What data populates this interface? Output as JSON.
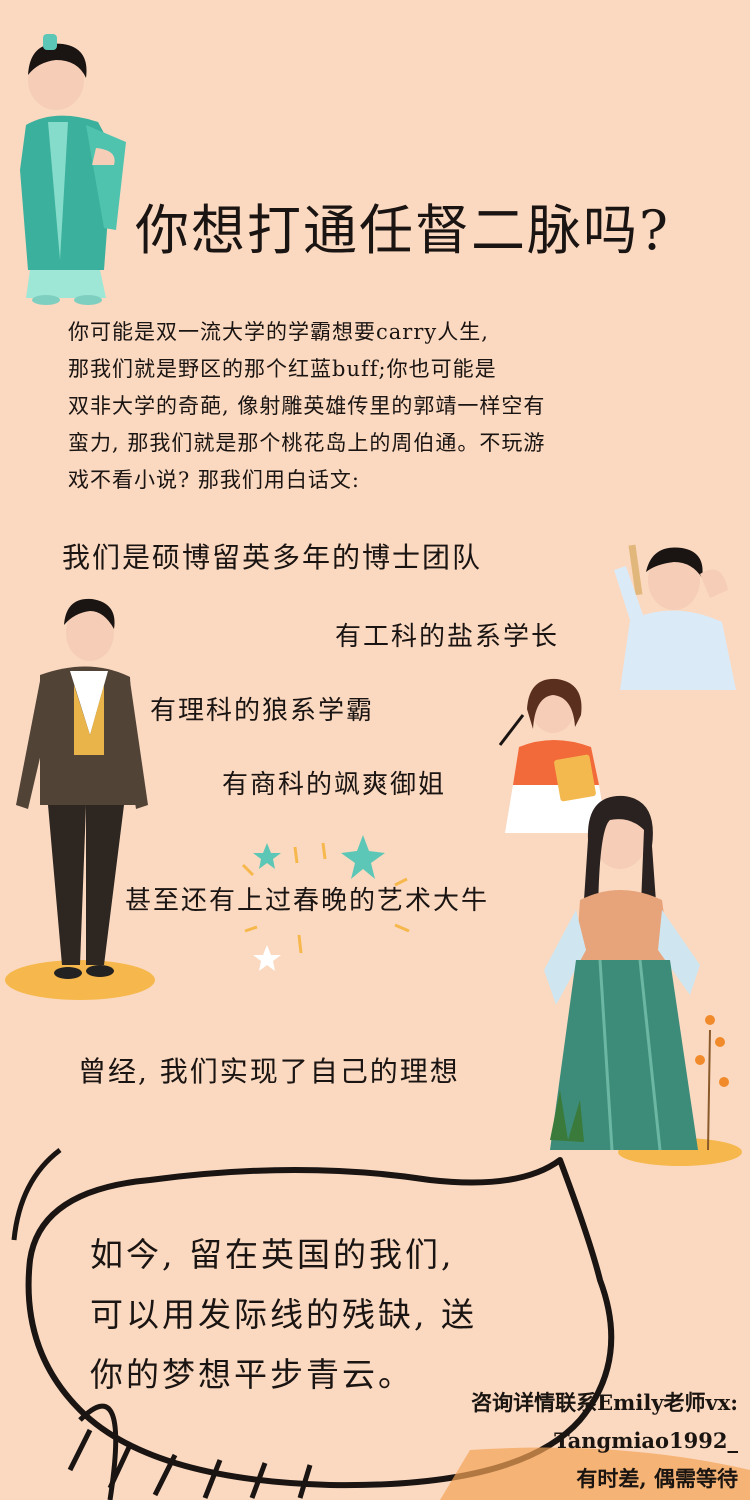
{
  "title": "你想打通任督二脉吗?",
  "intro": {
    "line1": "你可能是双一流大学的学霸想要carry人生,",
    "line2": "那我们就是野区的那个红蓝buff;你也可能是",
    "line3": "双非大学的奇葩, 像射雕英雄传里的郭靖一样空有",
    "line4": "蛮力, 那我们就是那个桃花岛上的周伯通。不玩游",
    "line5": "戏不看小说? 那我们用白话文:"
  },
  "team": {
    "l1": "我们是硕博留英多年的博士团队",
    "l2": "有工科的盐系学长",
    "l3": "有理科的狼系学霸",
    "l4": "有商科的飒爽御姐",
    "l5": "甚至还有上过春晚的艺术大牛"
  },
  "dream": "曾经, 我们实现了自己的理想",
  "bubble": {
    "line1": "如今, 留在英国的我们,",
    "line2": "可以用发际线的残缺, 送",
    "line3": "你的梦想平步青云。"
  },
  "contact": {
    "line1": "咨询详情联系Emily老师vx:",
    "line2": "Tangmiao1992_",
    "line3": "有时差, 偶需等待"
  },
  "colors": {
    "background": "#fbd9c0",
    "text": "#1a1412",
    "accent_yellow": "#f6b84c",
    "accent_teal": "#5cc7b6"
  }
}
